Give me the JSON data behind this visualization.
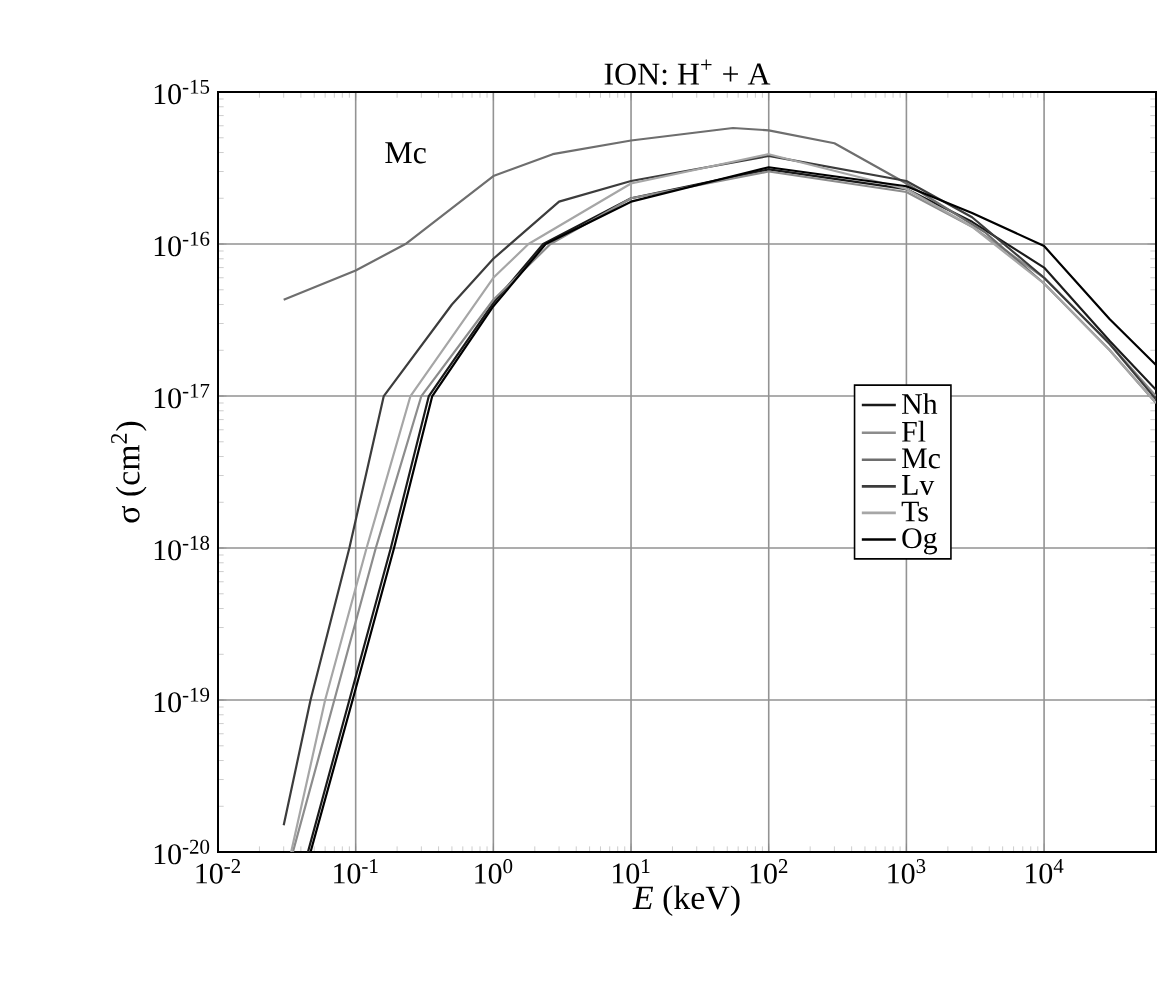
{
  "chart_data": {
    "type": "line",
    "title": "ION: H$^{+}$ + A",
    "xlabel": "*E* (keV)",
    "ylabel": "σ (cm$^{2}$)",
    "log": "xy",
    "grid": true,
    "legend": "center right",
    "line_style": "solid",
    "marker": "none",
    "xlim": [
      0.01,
      65000
    ],
    "ylim": [
      1e-20,
      1e-15
    ],
    "xticks": [
      {
        "value": 0.01,
        "label": "10$^{-2}$"
      },
      {
        "value": 0.1,
        "label": "10$^{-1}$"
      },
      {
        "value": 1,
        "label": "10$^{0}$"
      },
      {
        "value": 10,
        "label": "10$^{1}$"
      },
      {
        "value": 100,
        "label": "10$^{2}$"
      },
      {
        "value": 1000,
        "label": "10$^{3}$"
      },
      {
        "value": 10000,
        "label": "10$^{4}$"
      }
    ],
    "yticks": [
      {
        "value": 1e-20,
        "label": "10$^{-20}$"
      },
      {
        "value": 1e-19,
        "label": "10$^{-19}$"
      },
      {
        "value": 1e-18,
        "label": "10$^{-18}$"
      },
      {
        "value": 1e-17,
        "label": "10$^{-17}$"
      },
      {
        "value": 1e-16,
        "label": "10$^{-16}$"
      },
      {
        "value": 1e-15,
        "label": "10$^{-15}$"
      }
    ],
    "annotations": [
      "Mc"
    ],
    "series": [
      {
        "name": "Nh",
        "color": "#1a1a1a",
        "x": [
          0.045,
          0.09,
          0.18,
          0.34,
          1,
          2.3,
          10,
          100,
          1000,
          3000,
          10000,
          30000,
          65000
        ],
        "values": [
          1e-20,
          1e-19,
          1e-18,
          1e-17,
          4.1e-17,
          1e-16,
          2e-16,
          3.1e-16,
          2.3e-16,
          1.4e-16,
          7e-17,
          2.3e-17,
          1.1e-17
        ]
      },
      {
        "name": "Fl",
        "color": "#8c8c8c",
        "x": [
          0.035,
          0.07,
          0.14,
          0.3,
          1,
          2.6,
          10,
          100,
          1000,
          3000,
          10000,
          30000,
          65000
        ],
        "values": [
          1e-20,
          1e-19,
          1e-18,
          1e-17,
          4.3e-17,
          1e-16,
          2e-16,
          3e-16,
          2.2e-16,
          1.3e-16,
          6e-17,
          2.2e-17,
          1e-17
        ]
      },
      {
        "name": "Mc",
        "color": "#6e6e6e",
        "x": [
          0.03,
          0.1,
          0.23,
          1,
          2.7,
          10,
          55,
          100,
          300,
          1000,
          3700,
          10000,
          30000,
          65000
        ],
        "values": [
          4.3e-17,
          6.7e-17,
          1e-16,
          2.8e-16,
          3.9e-16,
          4.8e-16,
          5.8e-16,
          5.6e-16,
          4.6e-16,
          2.5e-16,
          1.2e-16,
          5.5e-17,
          2e-17,
          9e-18
        ]
      },
      {
        "name": "Lv",
        "color": "#3c3c3c",
        "x": [
          0.03,
          0.047,
          0.09,
          0.16,
          0.5,
          1,
          3,
          10,
          100,
          1000,
          3000,
          10000,
          30000,
          65000
        ],
        "values": [
          1.5e-20,
          1e-19,
          1e-18,
          1e-17,
          4e-17,
          8e-17,
          1.9e-16,
          2.6e-16,
          3.8e-16,
          2.6e-16,
          1.5e-16,
          6e-17,
          2.2e-17,
          9.5e-18
        ]
      },
      {
        "name": "Ts",
        "color": "#a6a6a6",
        "x": [
          0.034,
          0.06,
          0.12,
          0.25,
          1,
          1.8,
          10,
          100,
          1000,
          3000,
          10000,
          30000,
          65000
        ],
        "values": [
          1e-20,
          1e-19,
          1e-18,
          1e-17,
          6e-17,
          1e-16,
          2.5e-16,
          3.9e-16,
          2.3e-16,
          1.3e-16,
          5.5e-17,
          2e-17,
          9e-18
        ]
      },
      {
        "name": "Og",
        "color": "#000000",
        "x": [
          0.047,
          0.095,
          0.19,
          0.36,
          1,
          2.4,
          10,
          100,
          1000,
          3000,
          10000,
          30000,
          65000
        ],
        "values": [
          1e-20,
          1e-19,
          1e-18,
          1e-17,
          3.9e-17,
          1e-16,
          1.9e-16,
          3.2e-16,
          2.4e-16,
          1.6e-16,
          9.7e-17,
          3.2e-17,
          1.6e-17
        ]
      }
    ]
  }
}
